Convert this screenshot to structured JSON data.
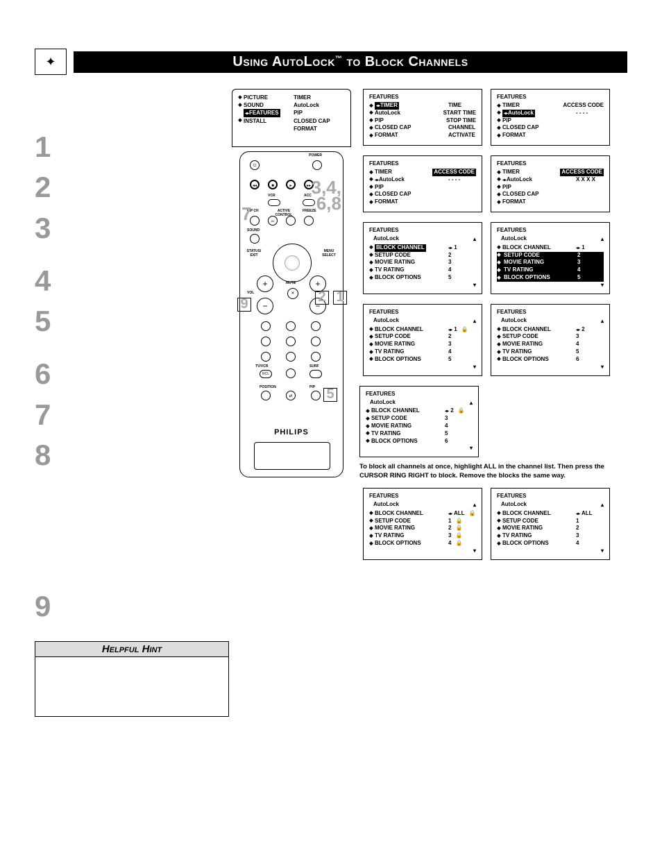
{
  "page": {
    "title_prefix": "Using AutoLock",
    "title_tm": "™",
    "title_suffix": " to Block Channels",
    "brand": "PHILIPS"
  },
  "steps": [
    "1",
    "2",
    "3",
    "4",
    "5",
    "6",
    "7",
    "8",
    "9"
  ],
  "hint": {
    "heading": "Helpful Hint"
  },
  "remote_labels": {
    "power": "POWER",
    "vcr": "VCR",
    "acc": "ACC",
    "pipch": "PIP CH",
    "av": "AV",
    "active_control": "ACTIVE CONTROL",
    "freeze": "FREEZE",
    "sound": "SOUND",
    "status_exit": "STATUS/\nEXIT",
    "menu_select": "MENU\nSELECT",
    "vol": "VOL",
    "mute": "MUTE",
    "tvvcr": "TV/VCR",
    "surf": "SURF",
    "rcl": "RCL",
    "position": "POSITION",
    "pip": "PIP"
  },
  "remote_callouts": {
    "n7": "7",
    "n3468": "3,4,\n6,8",
    "n9": "9",
    "n2": "2",
    "n1": "1",
    "n5": "5"
  },
  "root_menu": {
    "left": [
      {
        "d": "◆",
        "label": "PICTURE"
      },
      {
        "d": "◆",
        "label": "SOUND"
      },
      {
        "d": "",
        "label": "FEATURES",
        "hl": true,
        "arrow": true
      },
      {
        "d": "◆",
        "label": "INSTALL"
      }
    ],
    "right": [
      "TIMER",
      "AutoLock",
      "PIP",
      "CLOSED CAP",
      "FORMAT"
    ]
  },
  "screens": [
    {
      "header": "FEATURES",
      "sub": "",
      "items": [
        {
          "label": "TIMER",
          "hl": true,
          "arrow": true,
          "val": "TIME"
        },
        {
          "label": "AutoLock",
          "val": "START TIME"
        },
        {
          "label": "PIP",
          "val": "STOP TIME"
        },
        {
          "label": "CLOSED CAP",
          "val": "CHANNEL"
        },
        {
          "label": "FORMAT",
          "val": "ACTIVATE"
        },
        {
          "label": ""
        }
      ]
    },
    {
      "header": "FEATURES",
      "sub": "",
      "items": [
        {
          "label": "TIMER",
          "val": "ACCESS CODE"
        },
        {
          "label": "AutoLock",
          "hl": true,
          "arrow": true,
          "val": "- - - -"
        },
        {
          "label": "PIP"
        },
        {
          "label": "CLOSED CAP"
        },
        {
          "label": "FORMAT"
        },
        {
          "label": ""
        }
      ]
    },
    {
      "header": "FEATURES",
      "sub": "",
      "items": [
        {
          "label": "TIMER",
          "val_hl": true,
          "val": "ACCESS CODE"
        },
        {
          "label": "AutoLock",
          "arrow": true,
          "val": "- - - -"
        },
        {
          "label": "PIP"
        },
        {
          "label": "CLOSED CAP"
        },
        {
          "label": "FORMAT"
        },
        {
          "label": ""
        }
      ]
    },
    {
      "header": "FEATURES",
      "sub": "",
      "items": [
        {
          "label": "TIMER",
          "val_hl": true,
          "val": "ACCESS CODE"
        },
        {
          "label": "AutoLock",
          "arrow": true,
          "val": "X X X X"
        },
        {
          "label": "PIP"
        },
        {
          "label": "CLOSED CAP"
        },
        {
          "label": "FORMAT"
        },
        {
          "label": ""
        }
      ]
    },
    {
      "header": "FEATURES",
      "sub": "AutoLock",
      "tri": true,
      "items": [
        {
          "label": "BLOCK CHANNEL",
          "hl": true,
          "val": "1",
          "valarrow": true
        },
        {
          "label": "SETUP CODE",
          "val": "2"
        },
        {
          "label": "MOVIE RATING",
          "val": "3"
        },
        {
          "label": "TV RATING",
          "val": "4"
        },
        {
          "label": "BLOCK OPTIONS",
          "val": "5"
        }
      ]
    },
    {
      "header": "FEATURES",
      "sub": "AutoLock",
      "tri": true,
      "inverted": true,
      "items": [
        {
          "label": "BLOCK CHANNEL",
          "val": "1",
          "valarrow": true
        },
        {
          "label": "SETUP CODE",
          "val": "2"
        },
        {
          "label": "MOVIE RATING",
          "val": "3"
        },
        {
          "label": "TV RATING",
          "val": "4"
        },
        {
          "label": "BLOCK OPTIONS",
          "val": "5"
        }
      ]
    },
    {
      "header": "FEATURES",
      "sub": "AutoLock",
      "tri": true,
      "items": [
        {
          "label": "BLOCK CHANNEL",
          "val": "1",
          "valarrow": true,
          "lock": true
        },
        {
          "label": "SETUP CODE",
          "val": "2"
        },
        {
          "label": "MOVIE RATING",
          "val": "3"
        },
        {
          "label": "TV RATING",
          "val": "4"
        },
        {
          "label": "BLOCK OPTIONS",
          "val": "5"
        }
      ]
    },
    {
      "header": "FEATURES",
      "sub": "AutoLock",
      "tri": true,
      "items": [
        {
          "label": "BLOCK CHANNEL",
          "val": "2",
          "valarrow": true
        },
        {
          "label": "SETUP CODE",
          "val": "3"
        },
        {
          "label": "MOVIE RATING",
          "val": "4"
        },
        {
          "label": "TV RATING",
          "val": "5"
        },
        {
          "label": "BLOCK OPTIONS",
          "val": "6"
        }
      ]
    },
    {
      "header": "FEATURES",
      "sub": "AutoLock",
      "tri": true,
      "items": [
        {
          "label": "BLOCK CHANNEL",
          "val": "2",
          "valarrow": true,
          "lock": true
        },
        {
          "label": "SETUP CODE",
          "val": "3"
        },
        {
          "label": "MOVIE RATING",
          "val": "4"
        },
        {
          "label": "TV RATING",
          "val": "5"
        },
        {
          "label": "BLOCK OPTIONS",
          "val": "6"
        }
      ]
    }
  ],
  "note": "To block all channels at once, highlight ALL in the channel list. Then press the CURSOR RING RIGHT to block. Remove the blocks the same way.",
  "bottom_screens": [
    {
      "header": "FEATURES",
      "sub": "AutoLock",
      "tri": true,
      "items": [
        {
          "label": "BLOCK CHANNEL",
          "val": "ALL",
          "valarrow": true,
          "lock": true
        },
        {
          "label": "SETUP CODE",
          "val": "1",
          "lock": true
        },
        {
          "label": "MOVIE RATING",
          "val": "2",
          "lock": true
        },
        {
          "label": "TV RATING",
          "val": "3",
          "lock": true
        },
        {
          "label": "BLOCK OPTIONS",
          "val": "4",
          "lock": true
        }
      ]
    },
    {
      "header": "FEATURES",
      "sub": "AutoLock",
      "tri": true,
      "items": [
        {
          "label": "BLOCK CHANNEL",
          "val": "ALL",
          "valarrow": true
        },
        {
          "label": "SETUP CODE",
          "val": "1"
        },
        {
          "label": "MOVIE RATING",
          "val": "2"
        },
        {
          "label": "TV RATING",
          "val": "3"
        },
        {
          "label": "BLOCK OPTIONS",
          "val": "4"
        }
      ]
    }
  ]
}
